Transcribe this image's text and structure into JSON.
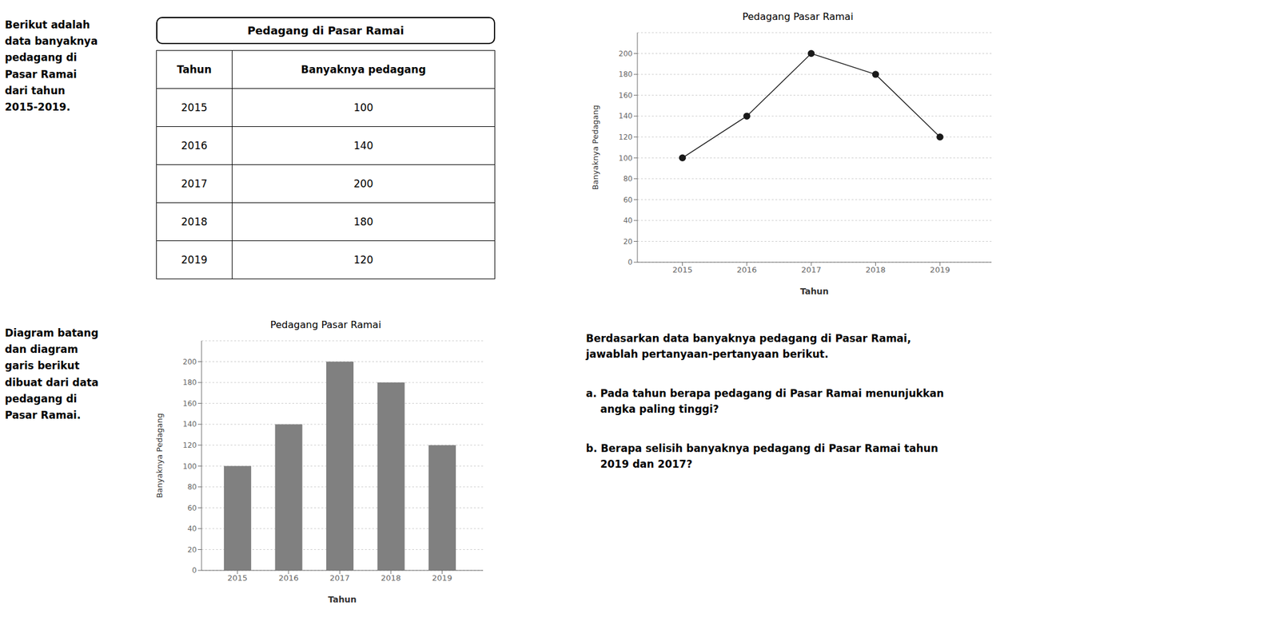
{
  "chart_data": [
    {
      "type": "table",
      "title": "Pedagang di Pasar Ramai",
      "columns": [
        "Tahun",
        "Banyaknya pedagang"
      ],
      "categories": [
        "2015",
        "2016",
        "2017",
        "2018",
        "2019"
      ],
      "values": [
        100,
        140,
        200,
        180,
        120
      ],
      "annotations": [
        "Berikut adalah\ndata banyaknya\npedagang di\nPasar Ramai\ndari tahun\n2015-2019."
      ]
    },
    {
      "type": "line",
      "title": "Pedagang Pasar Ramai",
      "xlabel": "Tahun",
      "ylabel": "Banyaknya Pedagang",
      "x": [
        2015,
        2016,
        2017,
        2018,
        2019
      ],
      "values": [
        100,
        140,
        200,
        180,
        120
      ],
      "color": "#1a1a1a",
      "marker": "circle",
      "xlim": [
        2014.3,
        2019.8
      ],
      "xticks": [
        2015,
        2016,
        2017,
        2018,
        2019
      ],
      "ylim": [
        0,
        220
      ],
      "yticks": [
        0,
        20,
        40,
        60,
        80,
        100,
        120,
        140,
        160,
        180,
        200
      ],
      "grid": true
    },
    {
      "type": "bar",
      "title": "Pedagang Pasar Ramai",
      "xlabel": "Tahun",
      "ylabel": "Banyaknya Pedagang",
      "x": [
        2015,
        2016,
        2017,
        2018,
        2019
      ],
      "values": [
        100,
        140,
        200,
        180,
        120
      ],
      "color": "#808080",
      "xlim": [
        2014.3,
        2019.8
      ],
      "xticks": [
        2015,
        2016,
        2017,
        2018,
        2019
      ],
      "ylim": [
        0,
        220
      ],
      "yticks": [
        0,
        20,
        40,
        60,
        80,
        100,
        120,
        140,
        160,
        180,
        200
      ],
      "grid": true,
      "annotations": [
        "Diagram batang\ndan diagram\ngaris berikut\ndibuat dari data\npedagang di\nPasar Ramai."
      ]
    },
    {
      "type": "text",
      "annotations": [
        "Berdasarkan data banyaknya pedagang di Pasar Ramai,\njawablah pertanyaan-pertanyaan berikut.",
        "a. Pada tahun berapa pedagang di Pasar Ramai menunjukkan\n    angka paling tinggi?",
        "b. Berapa selisih banyaknya pedagang di Pasar Ramai tahun\n    2019 dan 2017?"
      ]
    }
  ]
}
